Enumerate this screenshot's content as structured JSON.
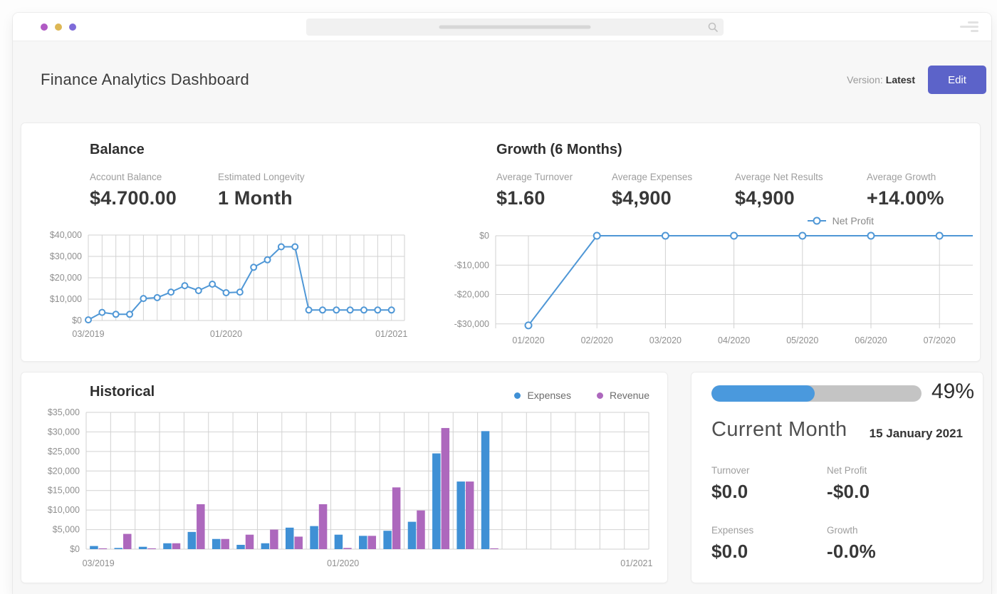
{
  "titlebar": {
    "window_controls": [
      "close",
      "minimize",
      "maximize"
    ],
    "search_value": "",
    "icons": {
      "search": "magnifier-icon",
      "menu": "menu-lines-icon"
    }
  },
  "header": {
    "title": "Finance Analytics Dashboard",
    "version_label": "Version:",
    "version_value": "Latest",
    "edit_button": "Edit"
  },
  "balance": {
    "title": "Balance",
    "stats": [
      {
        "label": "Account Balance",
        "value": "$4.700.00"
      },
      {
        "label": "Estimated Longevity",
        "value": "1 Month"
      }
    ]
  },
  "growth": {
    "title": "Growth (6 Months)",
    "stats": [
      {
        "label": "Average Turnover",
        "value": "$1.60"
      },
      {
        "label": "Average Expenses",
        "value": "$4,900"
      },
      {
        "label": "Average Net Results",
        "value": "$4,900"
      },
      {
        "label": "Average Growth",
        "value": "+14.00%"
      }
    ],
    "legend_label": "Net Profit"
  },
  "historical": {
    "title": "Historical",
    "legend": [
      {
        "label": "Expenses",
        "color": "#3f90d5"
      },
      {
        "label": "Revenue",
        "color": "#ad68bd"
      }
    ]
  },
  "current_month": {
    "progress_pct": 49,
    "progress_label": "49%",
    "title": "Current Month",
    "date": "15 January 2021",
    "stats": [
      {
        "label": "Turnover",
        "value": "$0.0"
      },
      {
        "label": "Net Profit",
        "value": "-$0.0"
      },
      {
        "label": "Expenses",
        "value": "$0.0"
      },
      {
        "label": "Growth",
        "value": "-0.0%"
      }
    ]
  },
  "colors": {
    "accent_blue": "#4f97d6",
    "bar_blue": "#3f90d5",
    "bar_purple": "#ad68bd",
    "edit_button": "#5c63c9",
    "progress_fill": "#4a99dd",
    "progress_track": "#c4c4c4",
    "traffic_dot_1": "#b05ac4",
    "traffic_dot_2": "#ddb755",
    "traffic_dot_3": "#7e6bd9"
  },
  "chart_data": [
    {
      "id": "balance-chart",
      "type": "line",
      "title": "Balance over time",
      "categories": [
        "03/2019",
        "04/2019",
        "05/2019",
        "06/2019",
        "07/2019",
        "08/2019",
        "09/2019",
        "10/2019",
        "11/2019",
        "12/2019",
        "01/2020",
        "02/2020",
        "03/2020",
        "04/2020",
        "05/2020",
        "06/2020",
        "07/2020",
        "08/2020",
        "09/2020",
        "10/2020",
        "11/2020",
        "12/2020",
        "01/2021"
      ],
      "values": [
        300,
        3800,
        2900,
        2900,
        10300,
        10700,
        13300,
        16300,
        14000,
        17000,
        13000,
        13300,
        24900,
        28400,
        34500,
        34500,
        4900,
        4900,
        4900,
        4900,
        4900,
        4900,
        4900
      ],
      "x_tick_labels": [
        {
          "index": 0,
          "label": "03/2019"
        },
        {
          "index": 10,
          "label": "01/2020"
        },
        {
          "index": 22,
          "label": "01/2021"
        }
      ],
      "ylim": [
        0,
        40000
      ],
      "y_ticks": [
        0,
        10000,
        20000,
        30000,
        40000
      ],
      "grid": true,
      "legend_position": "none"
    },
    {
      "id": "growth-chart",
      "type": "line",
      "title": "Growth (6 Months) net profit",
      "series_name": "Net Profit",
      "categories": [
        "01/2020",
        "02/2020",
        "03/2020",
        "04/2020",
        "05/2020",
        "06/2020",
        "07/2020"
      ],
      "values": [
        -30500,
        0,
        0,
        0,
        0,
        0,
        0
      ],
      "ylim": [
        -31500,
        0
      ],
      "y_ticks": [
        0,
        -10000,
        -20000,
        -30000
      ],
      "grid": true,
      "legend_position": "top-right"
    },
    {
      "id": "historical-chart",
      "type": "bar",
      "title": "Historical expenses vs revenue",
      "categories": [
        "03/2019",
        "04/2019",
        "05/2019",
        "06/2019",
        "07/2019",
        "08/2019",
        "09/2019",
        "10/2019",
        "11/2019",
        "12/2019",
        "01/2020",
        "02/2020",
        "03/2020",
        "04/2020",
        "05/2020",
        "06/2020",
        "07/2020",
        "08/2020",
        "09/2020",
        "10/2020",
        "11/2020",
        "12/2020",
        "01/2021"
      ],
      "series": [
        {
          "name": "Expenses",
          "color": "#3f90d5",
          "values": [
            800,
            300,
            600,
            1500,
            4400,
            2600,
            1100,
            1500,
            5500,
            5900,
            3700,
            3400,
            4700,
            7000,
            24500,
            17300,
            30200,
            0,
            0,
            0,
            0,
            0,
            0
          ]
        },
        {
          "name": "Revenue",
          "color": "#ad68bd",
          "values": [
            200,
            3900,
            200,
            1500,
            11500,
            2600,
            3700,
            5000,
            3200,
            11500,
            300,
            3400,
            15800,
            9900,
            31000,
            17300,
            200,
            0,
            0,
            0,
            0,
            0,
            0
          ]
        }
      ],
      "x_tick_labels": [
        {
          "index": 0,
          "label": "03/2019"
        },
        {
          "index": 10,
          "label": "01/2020"
        },
        {
          "index": 22,
          "label": "01/2021"
        }
      ],
      "ylim": [
        0,
        35000
      ],
      "y_ticks": [
        0,
        5000,
        10000,
        15000,
        20000,
        25000,
        30000,
        35000
      ],
      "grid": true,
      "legend_position": "top-right"
    }
  ]
}
